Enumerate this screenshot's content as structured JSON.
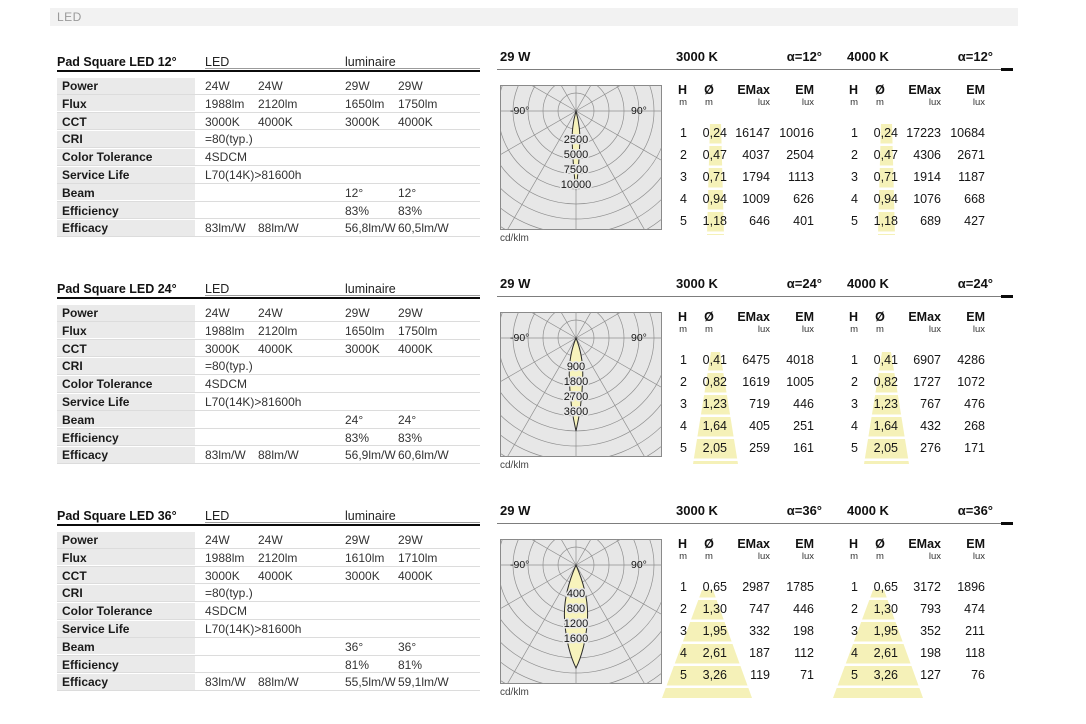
{
  "page_header": {
    "label": "LED"
  },
  "colors": {
    "highlight_yellow": "#f5f1b8",
    "beam_fill": "#f7f3bc",
    "diagram_bg": "#e7e7e7",
    "row_label_bg": "#eaeaea"
  },
  "sections": [
    {
      "title": "Pad Square LED 12°",
      "spec": {
        "col_led": "LED",
        "col_lum": "luminaire",
        "rows": [
          {
            "label": "Power",
            "v1": "24W",
            "v2": "24W",
            "v3": "29W",
            "v4": "29W"
          },
          {
            "label": "Flux",
            "v1": "1988lm",
            "v2": "2120lm",
            "v3": "1650lm",
            "v4": "1750lm"
          },
          {
            "label": "CCT",
            "v1": "3000K",
            "v2": "4000K",
            "v3": "3000K",
            "v4": "4000K"
          },
          {
            "label": "CRI",
            "v1": "=80(typ.)",
            "v2": "",
            "v3": "",
            "v4": ""
          },
          {
            "label": "Color Tolerance",
            "v1": "4SDCM",
            "v2": "",
            "v3": "",
            "v4": ""
          },
          {
            "label": "Service Life",
            "v1": "L70(14K)>81600h",
            "v2": "",
            "v3": "",
            "v4": ""
          },
          {
            "label": "Beam",
            "v1": "",
            "v2": "",
            "v3": "12°",
            "v4": "12°"
          },
          {
            "label": "Efficiency",
            "v1": "",
            "v2": "",
            "v3": "83%",
            "v4": "83%"
          },
          {
            "label": "Efficacy",
            "v1": "83lm/W",
            "v2": "88lm/W",
            "v3": "56,8lm/W",
            "v4": "60,5lm/W"
          }
        ]
      },
      "diagram": {
        "power": "29 W",
        "rings": [
          "2500",
          "5000",
          "7500",
          "10000"
        ],
        "left": "-90°",
        "right": "90°",
        "unit": "cd/klm"
      },
      "photo": {
        "cct1": "3000 K",
        "a1": "α=12°",
        "cct2": "4000 K",
        "a2": "α=12°",
        "h": "H",
        "d": "Ø",
        "emax": "EMax",
        "em": "EM",
        "m": "m",
        "lux": "lux",
        "t1": [
          [
            "1",
            "0,24",
            "16147",
            "10016"
          ],
          [
            "2",
            "0,47",
            "4037",
            "2504"
          ],
          [
            "3",
            "0,71",
            "1794",
            "1113"
          ],
          [
            "4",
            "0,94",
            "1009",
            "626"
          ],
          [
            "5",
            "1,18",
            "646",
            "401"
          ]
        ],
        "t2": [
          [
            "1",
            "0,24",
            "17223",
            "10684"
          ],
          [
            "2",
            "0,47",
            "4306",
            "2671"
          ],
          [
            "3",
            "0,71",
            "1914",
            "1187"
          ],
          [
            "4",
            "0,94",
            "1076",
            "668"
          ],
          [
            "5",
            "1,18",
            "689",
            "427"
          ]
        ]
      }
    },
    {
      "title": "Pad Square LED 24°",
      "spec": {
        "col_led": "LED",
        "col_lum": "luminaire",
        "rows": [
          {
            "label": "Power",
            "v1": "24W",
            "v2": "24W",
            "v3": "29W",
            "v4": "29W"
          },
          {
            "label": "Flux",
            "v1": "1988lm",
            "v2": "2120lm",
            "v3": "1650lm",
            "v4": "1750lm"
          },
          {
            "label": "CCT",
            "v1": "3000K",
            "v2": "4000K",
            "v3": "3000K",
            "v4": "4000K"
          },
          {
            "label": "CRI",
            "v1": "=80(typ.)",
            "v2": "",
            "v3": "",
            "v4": ""
          },
          {
            "label": "Color Tolerance",
            "v1": "4SDCM",
            "v2": "",
            "v3": "",
            "v4": ""
          },
          {
            "label": "Service Life",
            "v1": "L70(14K)>81600h",
            "v2": "",
            "v3": "",
            "v4": ""
          },
          {
            "label": "Beam",
            "v1": "",
            "v2": "",
            "v3": "24°",
            "v4": "24°"
          },
          {
            "label": "Efficiency",
            "v1": "",
            "v2": "",
            "v3": "83%",
            "v4": "83%"
          },
          {
            "label": "Efficacy",
            "v1": "83lm/W",
            "v2": "88lm/W",
            "v3": "56,9lm/W",
            "v4": "60,6lm/W"
          }
        ]
      },
      "diagram": {
        "power": "29 W",
        "rings": [
          "900",
          "1800",
          "2700",
          "3600"
        ],
        "left": "-90°",
        "right": "90°",
        "unit": "cd/klm"
      },
      "photo": {
        "cct1": "3000 K",
        "a1": "α=24°",
        "cct2": "4000 K",
        "a2": "α=24°",
        "h": "H",
        "d": "Ø",
        "emax": "EMax",
        "em": "EM",
        "m": "m",
        "lux": "lux",
        "t1": [
          [
            "1",
            "0,41",
            "6475",
            "4018"
          ],
          [
            "2",
            "0,82",
            "1619",
            "1005"
          ],
          [
            "3",
            "1,23",
            "719",
            "446"
          ],
          [
            "4",
            "1,64",
            "405",
            "251"
          ],
          [
            "5",
            "2,05",
            "259",
            "161"
          ]
        ],
        "t2": [
          [
            "1",
            "0,41",
            "6907",
            "4286"
          ],
          [
            "2",
            "0,82",
            "1727",
            "1072"
          ],
          [
            "3",
            "1,23",
            "767",
            "476"
          ],
          [
            "4",
            "1,64",
            "432",
            "268"
          ],
          [
            "5",
            "2,05",
            "276",
            "171"
          ]
        ]
      }
    },
    {
      "title": "Pad Square LED 36°",
      "spec": {
        "col_led": "LED",
        "col_lum": "luminaire",
        "rows": [
          {
            "label": "Power",
            "v1": "24W",
            "v2": "24W",
            "v3": "29W",
            "v4": "29W"
          },
          {
            "label": "Flux",
            "v1": "1988lm",
            "v2": "2120lm",
            "v3": "1610lm",
            "v4": "1710lm"
          },
          {
            "label": "CCT",
            "v1": "3000K",
            "v2": "4000K",
            "v3": "3000K",
            "v4": "4000K"
          },
          {
            "label": "CRI",
            "v1": "=80(typ.)",
            "v2": "",
            "v3": "",
            "v4": ""
          },
          {
            "label": "Color Tolerance",
            "v1": "4SDCM",
            "v2": "",
            "v3": "",
            "v4": ""
          },
          {
            "label": "Service Life",
            "v1": "L70(14K)>81600h",
            "v2": "",
            "v3": "",
            "v4": ""
          },
          {
            "label": "Beam",
            "v1": "",
            "v2": "",
            "v3": "36°",
            "v4": "36°"
          },
          {
            "label": "Efficiency",
            "v1": "",
            "v2": "",
            "v3": "81%",
            "v4": "81%"
          },
          {
            "label": "Efficacy",
            "v1": "83lm/W",
            "v2": "88lm/W",
            "v3": "55,5lm/W",
            "v4": "59,1lm/W"
          }
        ]
      },
      "diagram": {
        "power": "29 W",
        "rings": [
          "400",
          "800",
          "1200",
          "1600"
        ],
        "left": "-90°",
        "right": "90°",
        "unit": "cd/klm"
      },
      "photo": {
        "cct1": "3000 K",
        "a1": "α=36°",
        "cct2": "4000 K",
        "a2": "α=36°",
        "h": "H",
        "d": "Ø",
        "emax": "EMax",
        "em": "EM",
        "m": "m",
        "lux": "lux",
        "t1": [
          [
            "1",
            "0,65",
            "2987",
            "1785"
          ],
          [
            "2",
            "1,30",
            "747",
            "446"
          ],
          [
            "3",
            "1,95",
            "332",
            "198"
          ],
          [
            "4",
            "2,61",
            "187",
            "112"
          ],
          [
            "5",
            "3,26",
            "119",
            "71"
          ]
        ],
        "t2": [
          [
            "1",
            "0,65",
            "3172",
            "1896"
          ],
          [
            "2",
            "1,30",
            "793",
            "474"
          ],
          [
            "3",
            "1,95",
            "352",
            "211"
          ],
          [
            "4",
            "2,61",
            "198",
            "118"
          ],
          [
            "5",
            "3,26",
            "127",
            "76"
          ]
        ]
      }
    }
  ]
}
